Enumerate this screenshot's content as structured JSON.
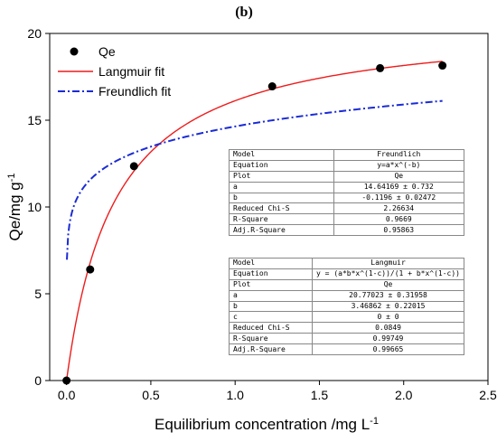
{
  "panel_label": "(b)",
  "colors": {
    "langmuir": "#ee1c1c",
    "freundlich": "#1a2bd6",
    "points": "#000000"
  },
  "chart_data": {
    "type": "scatter",
    "title": "",
    "xlabel": "Equilibrium concentration /mg L",
    "xlabel_sup": "-1",
    "ylabel": "Qe/mg g",
    "ylabel_sup": "-1",
    "xlim": [
      -0.1,
      2.5
    ],
    "ylim": [
      0,
      20
    ],
    "xticks": [
      0.0,
      0.5,
      1.0,
      1.5,
      2.0,
      2.5
    ],
    "xtick_labels": [
      "0.0",
      "0.5",
      "1.0",
      "1.5",
      "2.0",
      "2.5"
    ],
    "yticks": [
      0,
      5,
      10,
      15,
      20
    ],
    "ytick_labels": [
      "0",
      "5",
      "10",
      "15",
      "20"
    ],
    "grid": false,
    "legend_position": "top-left",
    "series": [
      {
        "name": "Qe",
        "kind": "points",
        "x": [
          0.0,
          0.14,
          0.4,
          1.22,
          1.86,
          2.23
        ],
        "y": [
          0.0,
          6.4,
          12.35,
          16.95,
          18.0,
          18.15
        ]
      },
      {
        "name": "Langmuir fit",
        "kind": "line",
        "model": "langmuir",
        "params": {
          "a": 20.77023,
          "b": 3.46862,
          "c": 0
        }
      },
      {
        "name": "Freundlich fit",
        "kind": "dashdot",
        "model": "freundlich",
        "params": {
          "a": 14.64169,
          "b": -0.1196
        }
      }
    ]
  },
  "tables": {
    "freundlich": [
      [
        "Model",
        "Freundlich"
      ],
      [
        "Equation",
        "y=a*x^(-b)"
      ],
      [
        "Plot",
        "Qe"
      ],
      [
        "a",
        "14.64169 ± 0.732"
      ],
      [
        "b",
        "-0.1196 ± 0.02472"
      ],
      [
        "Reduced Chi-S",
        "2.26634"
      ],
      [
        "R-Square",
        "0.9669"
      ],
      [
        "Adj.R-Square",
        "0.95863"
      ]
    ],
    "langmuir": [
      [
        "Model",
        "Langmuir"
      ],
      [
        "Equation",
        "y = (a*b*x^(1-c))/(1 + b*x^(1-c))"
      ],
      [
        "Plot",
        "Qe"
      ],
      [
        "a",
        "20.77023 ± 0.31958"
      ],
      [
        "b",
        "3.46862 ± 0.22015"
      ],
      [
        "c",
        "0 ± 0"
      ],
      [
        "Reduced Chi-S",
        "0.0849"
      ],
      [
        "R-Square",
        "0.99749"
      ],
      [
        "Adj.R-Square",
        "0.99665"
      ]
    ]
  }
}
